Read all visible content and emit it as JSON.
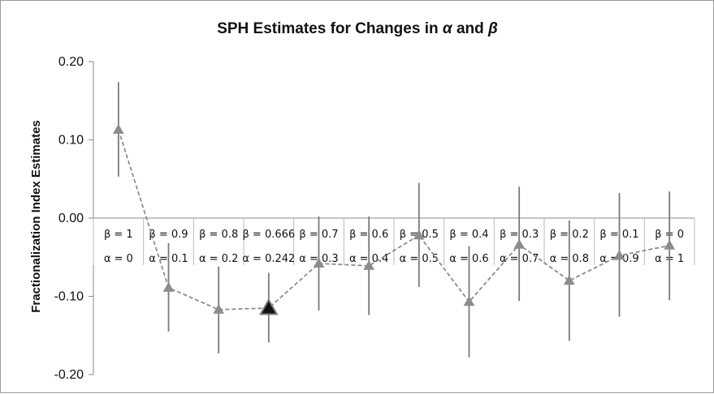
{
  "chart_data": {
    "type": "line",
    "title": "SPH Estimates for Changes in α and β",
    "title_parts": {
      "prefix": "SPH Estimates for Changes in ",
      "alpha": "α",
      "and": " and ",
      "beta": "β"
    },
    "xlabel": "",
    "ylabel": "Fractionalization Index Estimates",
    "ylim": [
      -0.2,
      0.2
    ],
    "yticks": [
      "0.20",
      "0.10",
      "0.00",
      "-0.10",
      "-0.20"
    ],
    "ytick_values": [
      0.2,
      0.1,
      0.0,
      -0.1,
      -0.2
    ],
    "grid": false,
    "legend": "none",
    "categories_beta": [
      "β = 1",
      "β = 0.9",
      "β = 0.8",
      "β = 0.666",
      "β = 0.7",
      "β = 0.6",
      "β = 0.5",
      "β = 0.4",
      "β = 0.3",
      "β = 0.2",
      "β = 0.1",
      "β = 0"
    ],
    "categories_alpha": [
      "α = 0",
      "α = 0.1",
      "α = 0.2",
      "α = 0.242",
      "α = 0.3",
      "α = 0.4",
      "α = 0.5",
      "α = 0.6",
      "α = 0.7",
      "α = 0.8",
      "α = 0.9",
      "α = 1"
    ],
    "series": [
      {
        "values": [
          0.113,
          -0.089,
          -0.117,
          -0.115,
          -0.058,
          -0.061,
          -0.022,
          -0.107,
          -0.034,
          -0.08,
          -0.048,
          -0.035
        ],
        "upper": [
          0.174,
          -0.032,
          -0.062,
          -0.07,
          0.002,
          0.002,
          0.045,
          -0.036,
          0.04,
          -0.003,
          0.032,
          0.034
        ],
        "lower": [
          0.053,
          -0.145,
          -0.173,
          -0.159,
          -0.118,
          -0.124,
          -0.088,
          -0.178,
          -0.106,
          -0.157,
          -0.126,
          -0.105
        ],
        "highlight_index": 3
      }
    ],
    "colors": {
      "marker": "#8c8c8c",
      "errorbar": "#7a7a7a",
      "line": "#8c8c8c",
      "highlight": "#111111",
      "axis": "#888888"
    }
  }
}
